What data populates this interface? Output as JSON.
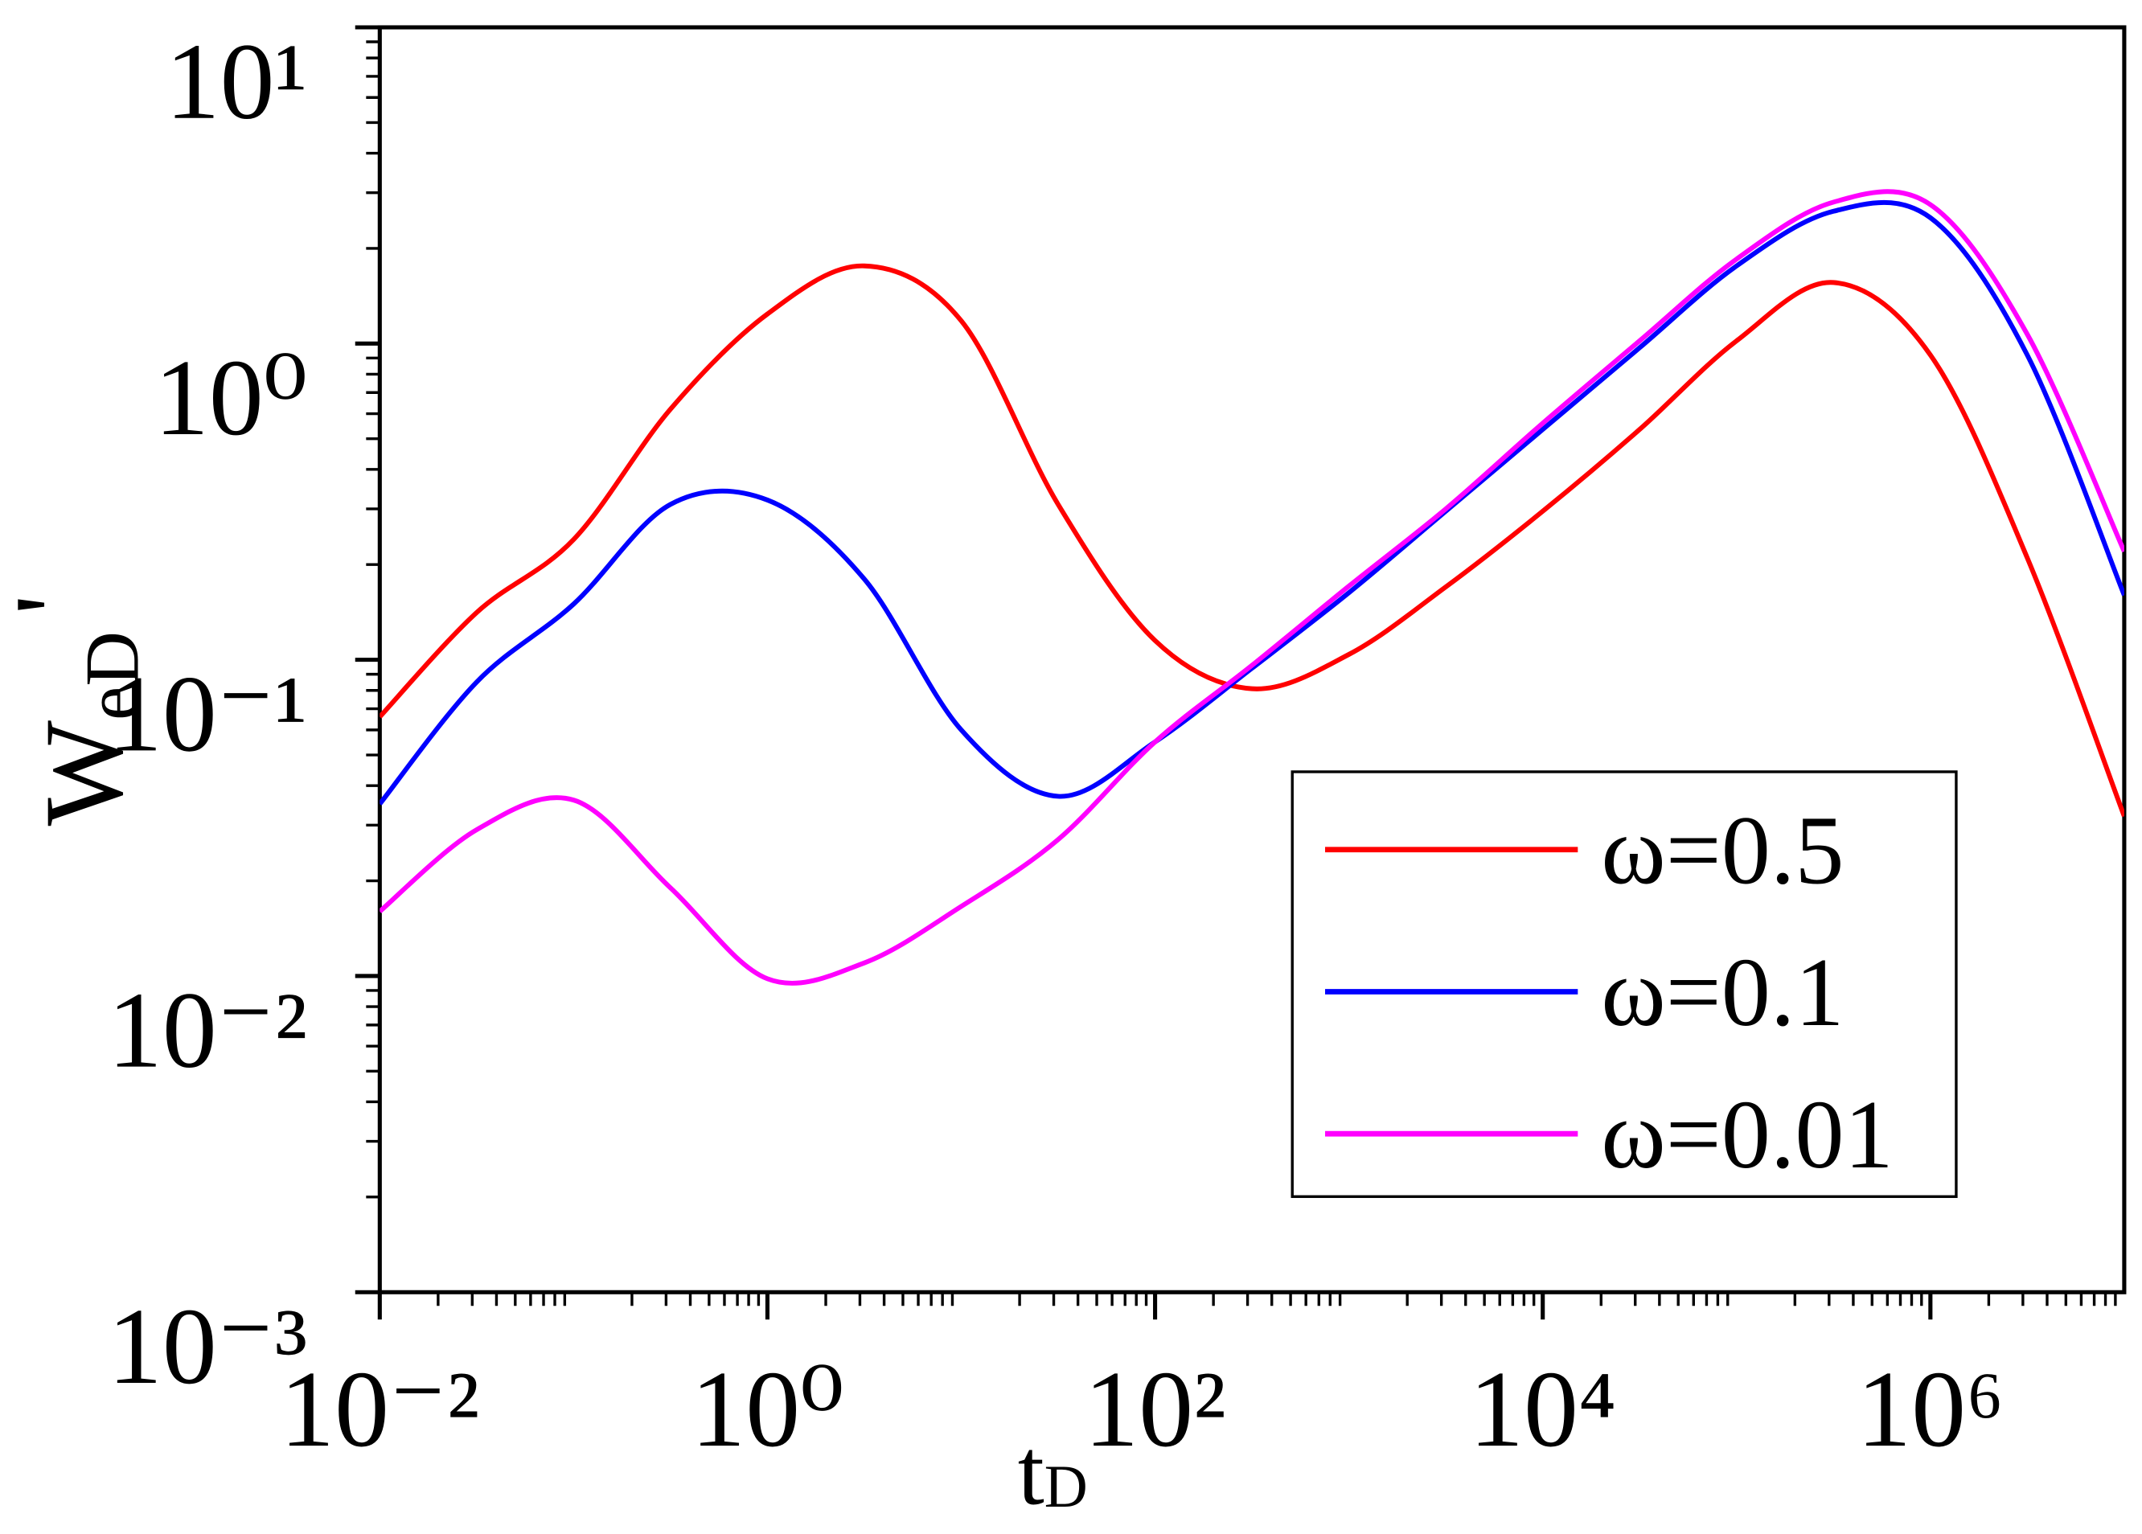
{
  "chart_data": {
    "type": "line",
    "xlabel": {
      "text": "t",
      "subscript": "D"
    },
    "ylabel": {
      "text": "W",
      "subscript": "eD",
      "suffix": "'"
    },
    "log_x": true,
    "log_y": true,
    "xlim": [
      0.01,
      10000000
    ],
    "ylim": [
      0.001,
      10
    ],
    "xticks": [
      {
        "value": 0.01,
        "label": "10⁻²"
      },
      {
        "value": 1,
        "label": "10⁰"
      },
      {
        "value": 100,
        "label": "10²"
      },
      {
        "value": 10000,
        "label": "10⁴"
      },
      {
        "value": 1000000,
        "label": "10⁶"
      }
    ],
    "yticks": [
      {
        "value": 0.001,
        "label": "10⁻³"
      },
      {
        "value": 0.01,
        "label": "10⁻²"
      },
      {
        "value": 0.1,
        "label": "10⁻¹"
      },
      {
        "value": 1,
        "label": "10⁰"
      },
      {
        "value": 10,
        "label": "10¹"
      }
    ],
    "legend": "lower right",
    "x": [
      0.01,
      0.0316,
      0.1,
      0.316,
      1,
      3.16,
      10,
      31.6,
      100,
      316,
      1000,
      3160,
      10000,
      31600,
      100000,
      316000,
      1000000,
      3160000,
      10000000
    ],
    "series": [
      {
        "name": "ω=0.5",
        "color": "#ff0000",
        "values": [
          0.066,
          0.141,
          0.24,
          0.62,
          1.24,
          1.76,
          1.18,
          0.31,
          0.115,
          0.081,
          0.104,
          0.17,
          0.295,
          0.535,
          1.02,
          1.56,
          0.92,
          0.21,
          0.032
        ]
      },
      {
        "name": "ω=0.1",
        "color": "#0000ff",
        "values": [
          0.035,
          0.085,
          0.15,
          0.31,
          0.32,
          0.18,
          0.06,
          0.037,
          0.055,
          0.094,
          0.163,
          0.295,
          0.535,
          0.97,
          1.76,
          2.62,
          2.5,
          0.92,
          0.16
        ]
      },
      {
        "name": "ω=0.01",
        "color": "#ff00ff",
        "values": [
          0.016,
          0.029,
          0.036,
          0.019,
          0.0098,
          0.011,
          0.0166,
          0.027,
          0.055,
          0.096,
          0.171,
          0.3,
          0.56,
          1.02,
          1.85,
          2.8,
          2.75,
          1.07,
          0.22
        ]
      }
    ]
  }
}
